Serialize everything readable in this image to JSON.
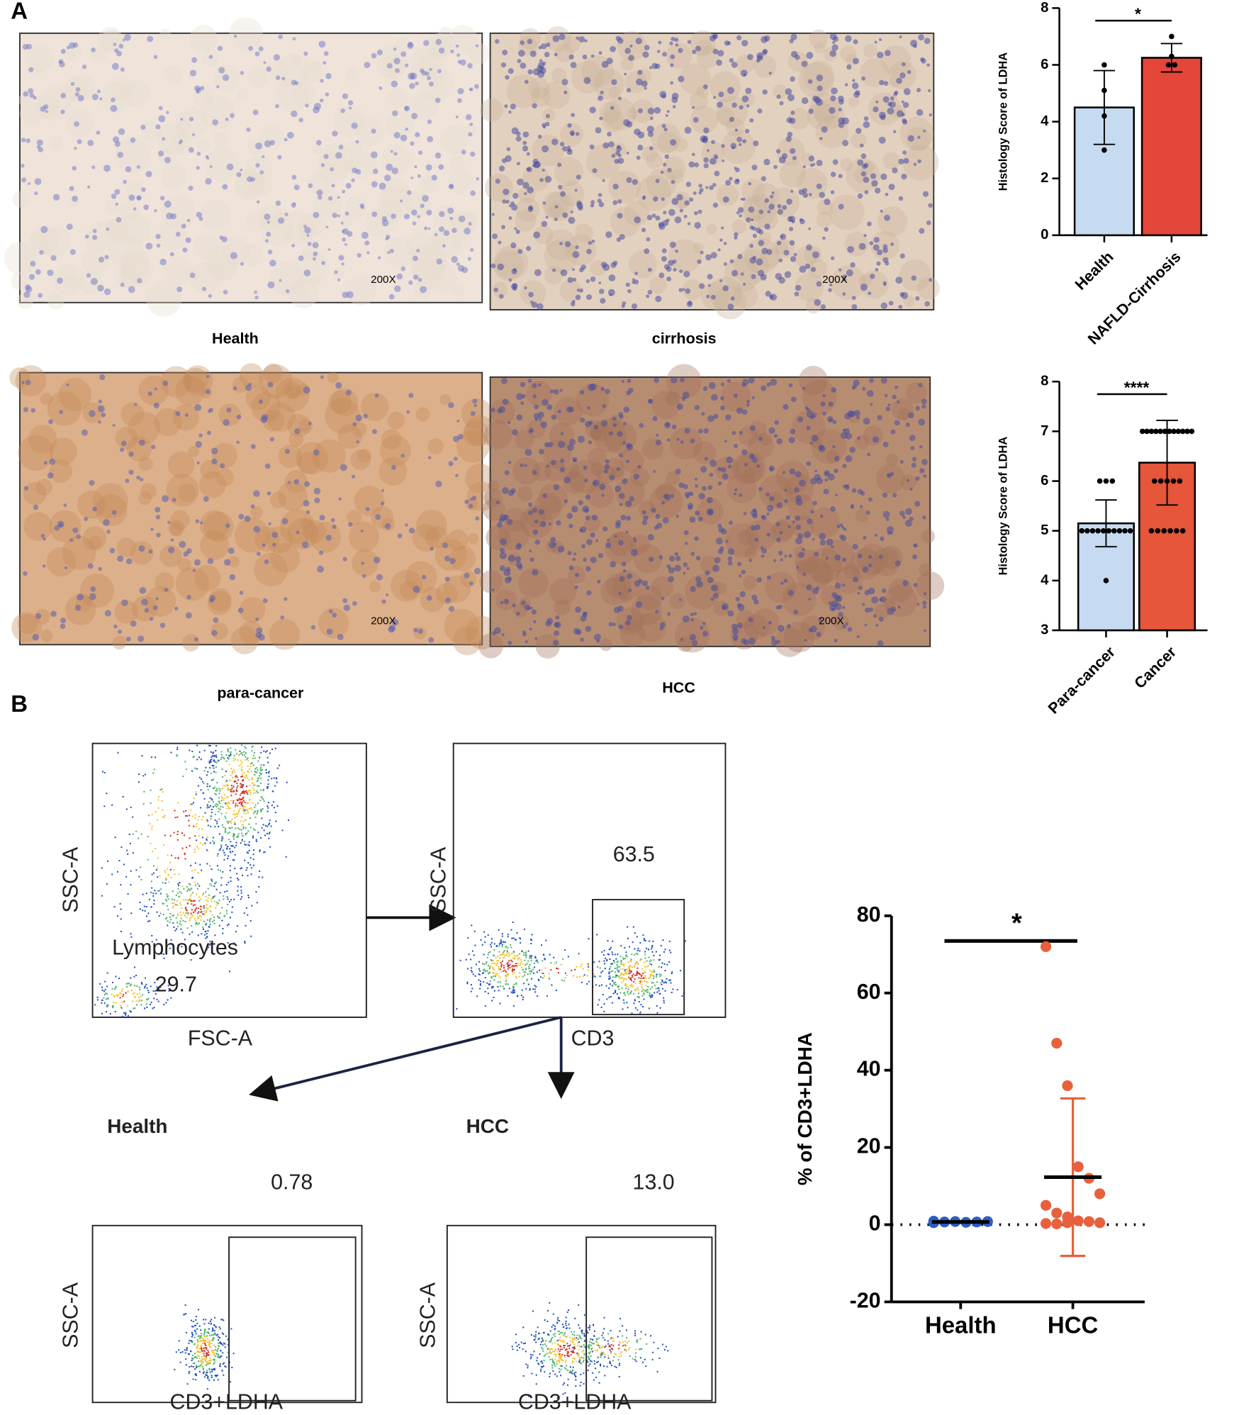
{
  "panel_labels": [
    "A",
    "B"
  ],
  "micrographs": [
    {
      "caption": "Health",
      "magnification": "200X"
    },
    {
      "caption": "cirrhosis",
      "magnification": "200X"
    },
    {
      "caption": "para-cancer",
      "magnification": "200X"
    },
    {
      "caption": "HCC",
      "magnification": "200X"
    }
  ],
  "flow_plots": [
    {
      "y_label": "SSC-A",
      "x_label": "FSC-A",
      "gate_name": "Lymphocytes",
      "gate_value": "29.7"
    },
    {
      "y_label": "SSC-A",
      "x_label": "CD3",
      "gate_value": "63.5"
    },
    {
      "sample": "Health",
      "y_label": "SSC-A",
      "x_label": "CD3+LDHA",
      "gate_value": "0.78"
    },
    {
      "sample": "HCC",
      "y_label": "SSC-A",
      "x_label": "CD3+LDHA",
      "gate_value": "13.0"
    }
  ],
  "chart_data": [
    {
      "type": "bar",
      "y_label": "Histology Score of LDHA",
      "categories": [
        "Health",
        "NAFLD-Cirrhosis"
      ],
      "values": [
        4.5,
        6.25
      ],
      "errors": [
        1.3,
        0.5
      ],
      "colors": [
        "#c6dbf1",
        "#e5463a"
      ],
      "points": [
        [
          6,
          5.1,
          4.2,
          3
        ],
        [
          7,
          6.3,
          6,
          6
        ]
      ],
      "significance": "*",
      "ylim": [
        0,
        8
      ],
      "yticks": [
        0,
        2,
        4,
        6,
        8
      ]
    },
    {
      "type": "bar",
      "y_label": "Histology Score of LDHA",
      "categories": [
        "Para-cancer",
        "Cancer"
      ],
      "values": [
        5.15,
        6.37
      ],
      "errors": [
        0.47,
        0.85
      ],
      "colors": [
        "#c6dbf1",
        "#e5563a"
      ],
      "points": [
        [
          6,
          6,
          6,
          5,
          5,
          5,
          5,
          5,
          5,
          5,
          5,
          5,
          5,
          4
        ],
        [
          7,
          7,
          7,
          7,
          7,
          7,
          7,
          7,
          7,
          7,
          7,
          7,
          6,
          6,
          6,
          6,
          6,
          5,
          5,
          5,
          5,
          5,
          5
        ]
      ],
      "significance": "****",
      "ylim": [
        3,
        8
      ],
      "yticks": [
        3,
        4,
        5,
        6,
        7,
        8
      ]
    },
    {
      "type": "dot",
      "y_label": "% of CD3+LDHA",
      "categories": [
        "Health",
        "HCC"
      ],
      "points": [
        [
          0.9,
          0.7,
          0.8,
          0.6,
          0.7,
          0.8,
          0.5
        ],
        [
          72,
          47,
          36,
          15,
          12,
          8,
          5,
          3,
          2,
          1,
          0.8,
          0.5,
          0.3,
          0.2,
          0.5
        ]
      ],
      "means": [
        0.7,
        12.3
      ],
      "errors": [
        0.2,
        20.4
      ],
      "colors": [
        "#2a5fc4",
        "#e8603c"
      ],
      "significance": "*",
      "ylim": [
        -20,
        80
      ],
      "yticks": [
        -20,
        0,
        20,
        40,
        60,
        80
      ]
    }
  ]
}
